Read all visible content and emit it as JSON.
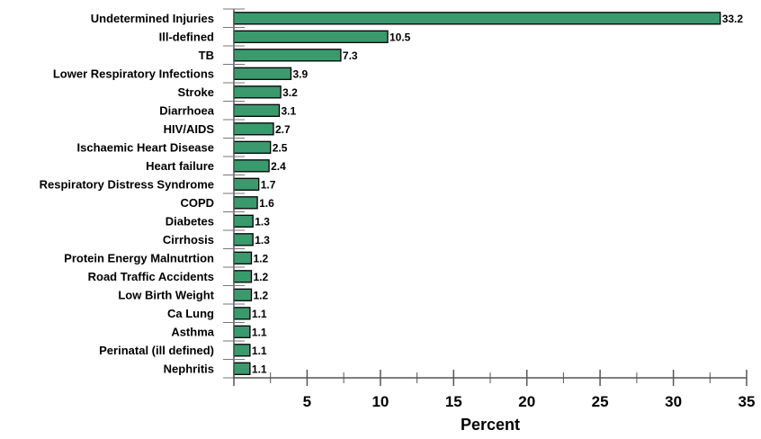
{
  "chart_data": {
    "type": "bar",
    "orientation": "horizontal",
    "categories": [
      "Undetermined Injuries",
      "Ill-defined",
      "TB",
      "Lower Respiratory Infections",
      "Stroke",
      "Diarrhoea",
      "HIV/AIDS",
      "Ischaemic Heart Disease",
      "Heart failure",
      "Respiratory Distress Syndrome",
      "COPD",
      "Diabetes",
      "Cirrhosis",
      "Protein Energy Malnutrtion",
      "Road Traffic Accidents",
      "Low Birth Weight",
      "Ca Lung",
      "Asthma",
      "Perinatal (ill defined)",
      "Nephritis"
    ],
    "values": [
      33.2,
      10.5,
      7.3,
      3.9,
      3.2,
      3.1,
      2.7,
      2.5,
      2.4,
      1.7,
      1.6,
      1.3,
      1.3,
      1.2,
      1.2,
      1.2,
      1.1,
      1.1,
      1.1,
      1.1
    ],
    "value_labels": [
      "33.2",
      "10.5",
      "7.3",
      "3.9",
      "3.2",
      "3.1",
      "2.7",
      "2.5",
      "2.4",
      "1.7",
      "1.6",
      "1.3",
      "1.3",
      "1.2",
      "1.2",
      "1.2",
      "1.1",
      "1.1",
      "1.1",
      "1.1"
    ],
    "xlabel": "Percent",
    "xlim": [
      0,
      35
    ],
    "x_ticks": [
      "5",
      "10",
      "15",
      "20",
      "25",
      "30",
      "35"
    ],
    "grid": false,
    "bar_color": "#3a9a6e",
    "bar_edge_color": "#000000"
  }
}
